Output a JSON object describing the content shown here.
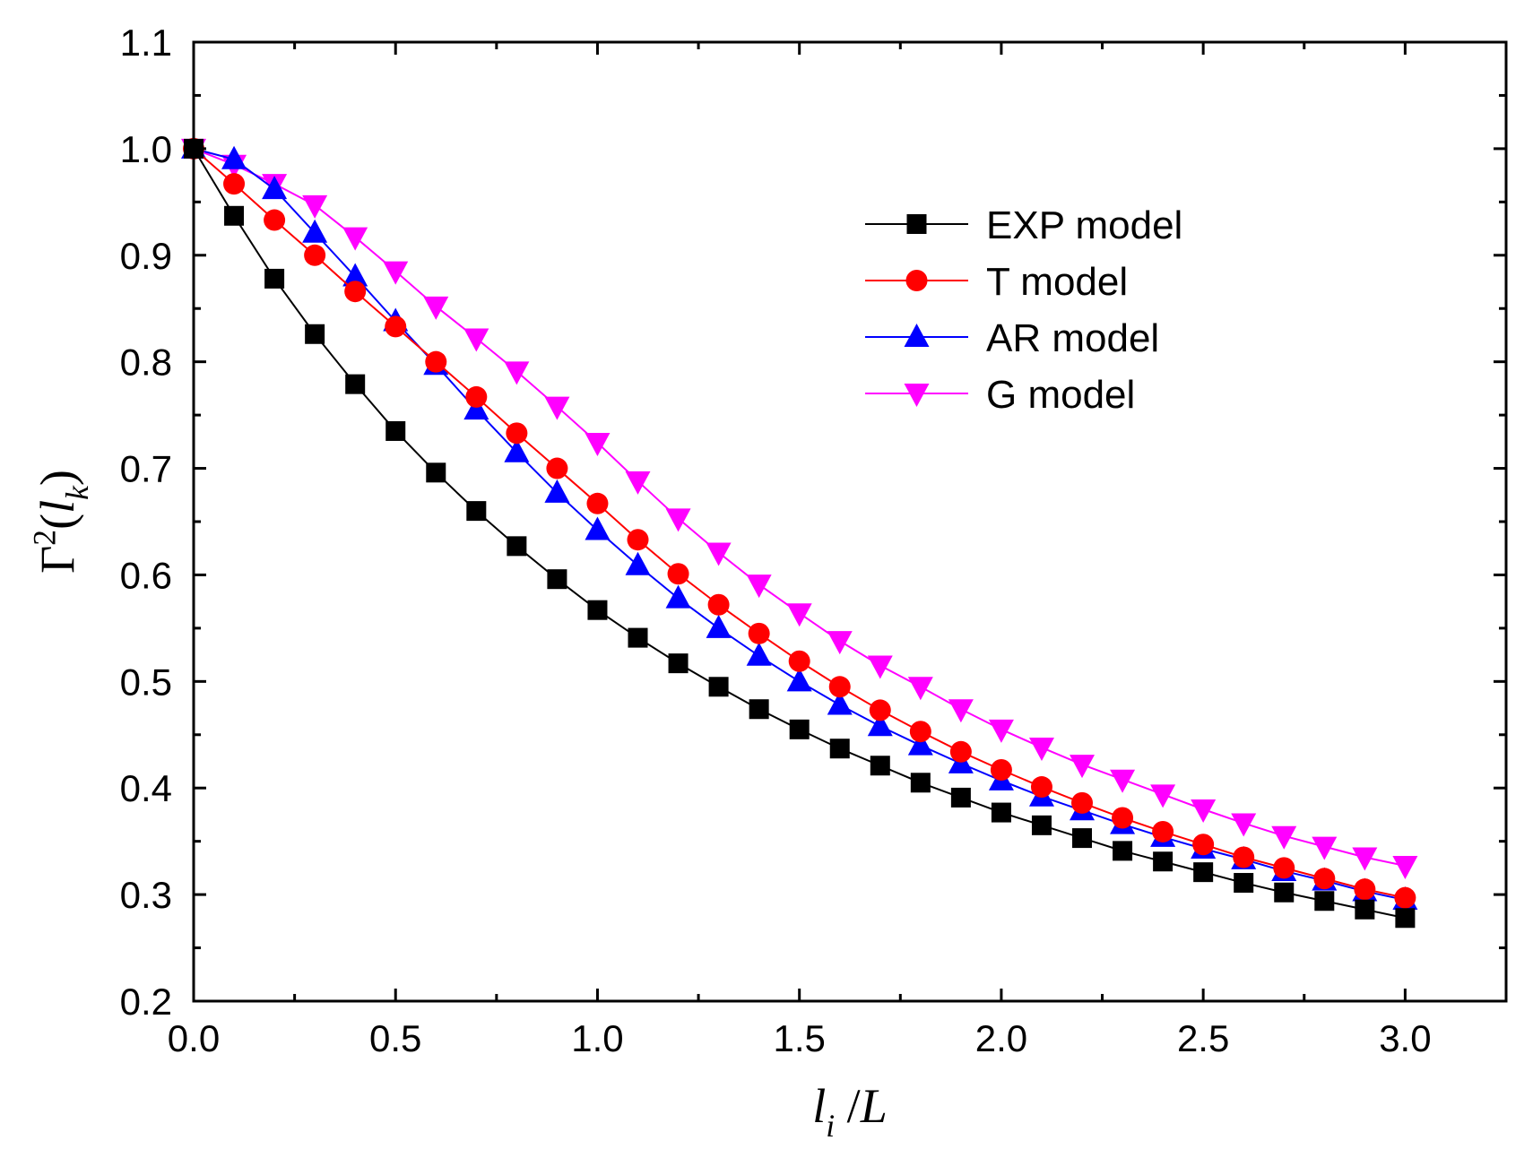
{
  "chart_data": {
    "type": "line",
    "title": "",
    "xlabel": {
      "parts": [
        {
          "text": "l",
          "italic": true
        },
        {
          "text": "i",
          "italic": true,
          "sub": true
        },
        {
          "text": " /",
          "italic": false
        },
        {
          "text": "L",
          "italic": true
        }
      ]
    },
    "ylabel": {
      "parts": [
        {
          "text": "Γ",
          "italic": false
        },
        {
          "text": "2",
          "italic": false,
          "sup": true
        },
        {
          "text": "(",
          "italic": false
        },
        {
          "text": "l",
          "italic": true
        },
        {
          "text": "k",
          "italic": true,
          "sub": true
        },
        {
          "text": ")",
          "italic": false
        }
      ]
    },
    "xlim": [
      0.0,
      3.25
    ],
    "ylim": [
      0.2,
      1.1
    ],
    "xticks": [
      0.0,
      0.5,
      1.0,
      1.5,
      2.0,
      2.5,
      3.0
    ],
    "xtick_labels": [
      "0.0",
      "0.5",
      "1.0",
      "1.5",
      "2.0",
      "2.5",
      "3.0"
    ],
    "yticks": [
      0.2,
      0.3,
      0.4,
      0.5,
      0.6,
      0.7,
      0.8,
      0.9,
      1.0,
      1.1
    ],
    "ytick_labels": [
      "0.2",
      "0.3",
      "0.4",
      "0.5",
      "0.6",
      "0.7",
      "0.8",
      "0.9",
      "1.0",
      "1.1"
    ],
    "grid": false,
    "legend_position": "top-right",
    "x": [
      0.0,
      0.1,
      0.2,
      0.3,
      0.4,
      0.5,
      0.6,
      0.7,
      0.8,
      0.9,
      1.0,
      1.1,
      1.2,
      1.3,
      1.4,
      1.5,
      1.6,
      1.7,
      1.8,
      1.9,
      2.0,
      2.1,
      2.2,
      2.3,
      2.4,
      2.5,
      2.6,
      2.7,
      2.8,
      2.9,
      3.0
    ],
    "series": [
      {
        "name": "EXP model",
        "color": "#000000",
        "marker": "square",
        "values": [
          1.0,
          0.937,
          0.878,
          0.826,
          0.779,
          0.735,
          0.696,
          0.66,
          0.627,
          0.596,
          0.567,
          0.541,
          0.517,
          0.495,
          0.474,
          0.455,
          0.437,
          0.421,
          0.405,
          0.391,
          0.377,
          0.365,
          0.353,
          0.341,
          0.331,
          0.321,
          0.311,
          0.302,
          0.294,
          0.286,
          0.278
        ]
      },
      {
        "name": "T model",
        "color": "#ff0000",
        "marker": "circle",
        "values": [
          1.0,
          0.967,
          0.933,
          0.9,
          0.866,
          0.833,
          0.8,
          0.767,
          0.733,
          0.7,
          0.667,
          0.633,
          0.601,
          0.572,
          0.545,
          0.519,
          0.495,
          0.473,
          0.453,
          0.434,
          0.417,
          0.401,
          0.386,
          0.372,
          0.359,
          0.347,
          0.335,
          0.325,
          0.315,
          0.305,
          0.297
        ]
      },
      {
        "name": "AR model",
        "color": "#0000ff",
        "marker": "triangle-up",
        "values": [
          1.0,
          0.99,
          0.962,
          0.921,
          0.88,
          0.838,
          0.797,
          0.755,
          0.715,
          0.677,
          0.642,
          0.609,
          0.578,
          0.55,
          0.524,
          0.5,
          0.478,
          0.458,
          0.44,
          0.423,
          0.407,
          0.392,
          0.379,
          0.366,
          0.354,
          0.343,
          0.333,
          0.322,
          0.313,
          0.303,
          0.295
        ]
      },
      {
        "name": "G model",
        "color": "#ff00ff",
        "marker": "triangle-down",
        "values": [
          1.0,
          0.985,
          0.967,
          0.947,
          0.917,
          0.885,
          0.852,
          0.822,
          0.791,
          0.758,
          0.724,
          0.688,
          0.653,
          0.621,
          0.591,
          0.564,
          0.538,
          0.515,
          0.495,
          0.474,
          0.455,
          0.438,
          0.422,
          0.408,
          0.394,
          0.38,
          0.367,
          0.355,
          0.345,
          0.335,
          0.327
        ]
      }
    ]
  }
}
